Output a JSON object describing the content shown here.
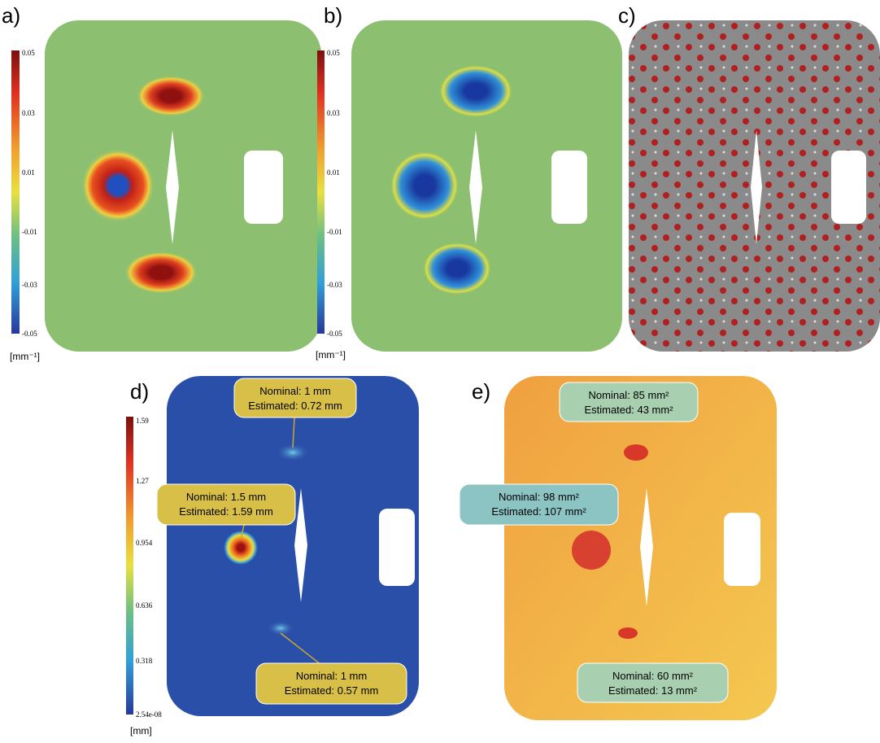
{
  "panels": [
    {
      "label": "a)",
      "colorbar": {
        "ticks": [
          "0.05",
          "0.03",
          "0.01",
          "-0.01",
          "-0.03",
          "-0.05"
        ],
        "unit": "[mm⁻¹]"
      }
    },
    {
      "label": "b)",
      "colorbar": {
        "ticks": [
          "0.05",
          "0.03",
          "0.01",
          "-0.01",
          "-0.03",
          "-0.05"
        ],
        "unit": "[mm⁻¹]"
      }
    },
    {
      "label": "c)"
    },
    {
      "label": "d)",
      "colorbar": {
        "ticks": [
          "1.59",
          "1.27",
          "0.954",
          "0.636",
          "0.318",
          "2.54e-08"
        ],
        "unit": "[mm]"
      },
      "annotations": [
        {
          "lines": [
            "Nominal: 1 mm",
            "Estimated: 0.72 mm"
          ]
        },
        {
          "lines": [
            "Nominal: 1.5 mm",
            "Estimated: 1.59 mm"
          ]
        },
        {
          "lines": [
            "Nominal: 1 mm",
            "Estimated: 0.57 mm"
          ]
        }
      ]
    },
    {
      "label": "e)",
      "annotations": [
        {
          "lines": [
            "Nominal: 85 mm²",
            "Estimated: 43 mm²"
          ]
        },
        {
          "lines": [
            "Nominal: 98 mm²",
            "Estimated: 107 mm²"
          ]
        },
        {
          "lines": [
            "Nominal: 60 mm²",
            "Estimated: 13 mm²"
          ]
        }
      ]
    }
  ]
}
